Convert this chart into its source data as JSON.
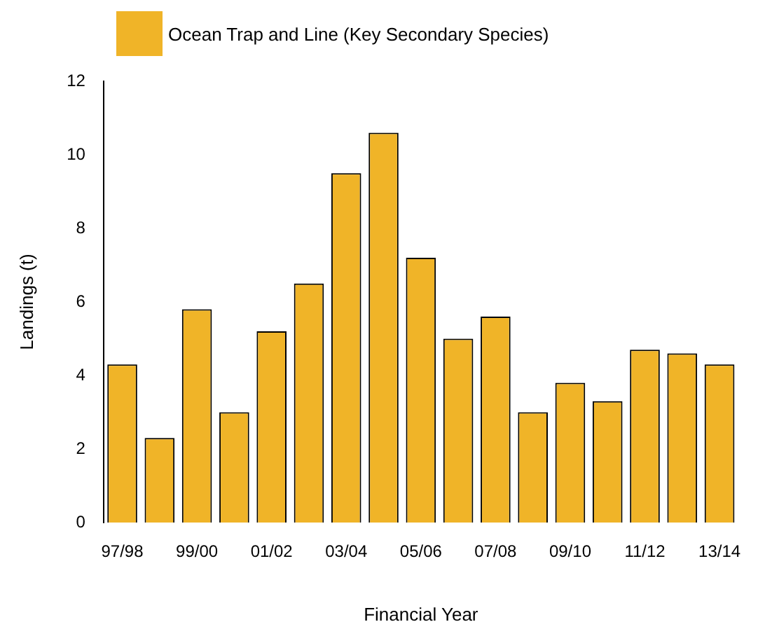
{
  "chart_data": {
    "type": "bar",
    "xlabel": "Financial Year",
    "ylabel": "Landings (t)",
    "categories": [
      "97/98",
      null,
      "99/00",
      null,
      "01/02",
      null,
      "03/04",
      null,
      "05/06",
      null,
      "07/08",
      null,
      "09/10",
      null,
      "11/12",
      null,
      "13/14"
    ],
    "series": [
      {
        "name": "Ocean Trap and Line (Key Secondary Species)",
        "color": "#f0b428",
        "values": [
          4.3,
          2.3,
          5.8,
          3.0,
          5.2,
          6.5,
          9.5,
          10.6,
          7.2,
          5.0,
          5.6,
          3.0,
          3.8,
          3.3,
          4.7,
          4.6,
          4.3
        ]
      }
    ],
    "ylim": [
      0,
      12
    ],
    "yticks": [
      0,
      2,
      4,
      6,
      8,
      10,
      12
    ],
    "grid": false,
    "legend": "top left"
  }
}
